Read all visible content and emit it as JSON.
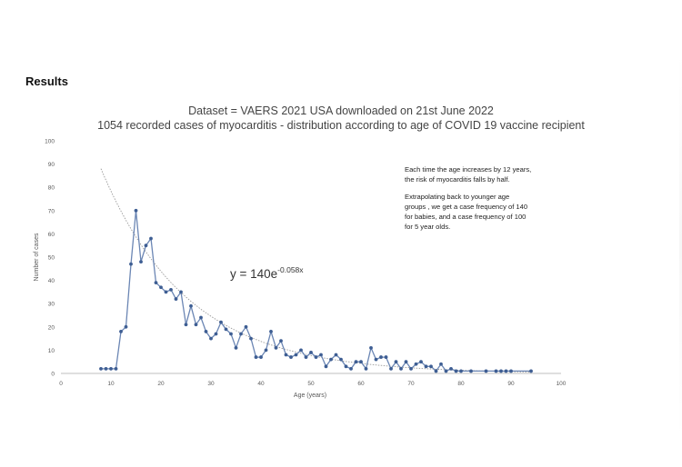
{
  "heading": "Results",
  "chart_data": {
    "type": "line",
    "title": "Dataset = VAERS 2021 USA downloaded on 21st June 2022",
    "subtitle": "1054 recorded cases of myocarditis - distribution according to age of COVID 19 vaccine recipient",
    "xlabel": "Age (years)",
    "ylabel": "Number of cases",
    "xlim": [
      0,
      100
    ],
    "ylim": [
      0,
      100
    ],
    "x_ticks": [
      0,
      10,
      20,
      30,
      40,
      50,
      60,
      70,
      80,
      90,
      100
    ],
    "y_ticks": [
      0,
      10,
      20,
      30,
      40,
      50,
      60,
      70,
      80,
      90,
      100
    ],
    "grid": false,
    "series": [
      {
        "values": [
          [
            8,
            2
          ],
          [
            9,
            2
          ],
          [
            10,
            2
          ],
          [
            11,
            2
          ],
          [
            12,
            18
          ],
          [
            13,
            20
          ],
          [
            14,
            47
          ],
          [
            15,
            70
          ],
          [
            16,
            48
          ],
          [
            17,
            55
          ],
          [
            18,
            58
          ],
          [
            19,
            39
          ],
          [
            20,
            37
          ],
          [
            21,
            35
          ],
          [
            22,
            36
          ],
          [
            23,
            32
          ],
          [
            24,
            35
          ],
          [
            25,
            21
          ],
          [
            26,
            29
          ],
          [
            27,
            21
          ],
          [
            28,
            24
          ],
          [
            29,
            18
          ],
          [
            30,
            15
          ],
          [
            31,
            17
          ],
          [
            32,
            22
          ],
          [
            33,
            19
          ],
          [
            34,
            17
          ],
          [
            35,
            11
          ],
          [
            36,
            17
          ],
          [
            37,
            20
          ],
          [
            38,
            15
          ],
          [
            39,
            7
          ],
          [
            40,
            7
          ],
          [
            41,
            10
          ],
          [
            42,
            18
          ],
          [
            43,
            11
          ],
          [
            44,
            14
          ],
          [
            45,
            8
          ],
          [
            46,
            7
          ],
          [
            47,
            8
          ],
          [
            48,
            10
          ],
          [
            49,
            7
          ],
          [
            50,
            9
          ],
          [
            51,
            7
          ],
          [
            52,
            8
          ],
          [
            53,
            3
          ],
          [
            54,
            6
          ],
          [
            55,
            8
          ],
          [
            56,
            6
          ],
          [
            57,
            3
          ],
          [
            58,
            2
          ],
          [
            59,
            5
          ],
          [
            60,
            5
          ],
          [
            61,
            2
          ],
          [
            62,
            11
          ],
          [
            63,
            6
          ],
          [
            64,
            7
          ],
          [
            65,
            7
          ],
          [
            66,
            2
          ],
          [
            67,
            5
          ],
          [
            68,
            2
          ],
          [
            69,
            5
          ],
          [
            70,
            2
          ],
          [
            71,
            4
          ],
          [
            72,
            5
          ],
          [
            73,
            3
          ],
          [
            74,
            3
          ],
          [
            75,
            1
          ],
          [
            76,
            4
          ],
          [
            77,
            1
          ],
          [
            78,
            2
          ],
          [
            79,
            1
          ],
          [
            80,
            1
          ],
          [
            82,
            1
          ],
          [
            85,
            1
          ],
          [
            87,
            1
          ],
          [
            88,
            1
          ],
          [
            89,
            1
          ],
          [
            90,
            1
          ],
          [
            94,
            1
          ]
        ]
      }
    ],
    "trendline": {
      "equation_base": "y = 140e",
      "equation_exponent": "-0.058x",
      "a": 140,
      "b": -0.058,
      "x_range": [
        8,
        94
      ]
    },
    "annotation": [
      "Each time the age increases by 12 years, the risk of myocarditis falls by half.",
      "Extrapolating back to younger age groups , we get a case frequency of 140 for babies, and a case frequency of 100 for 5 year olds."
    ],
    "colors": {
      "line": "#6b86b4",
      "marker": "#3e5e93",
      "trend": "#999999",
      "axis": "#bfbfbf",
      "tick_text": "#595959"
    }
  }
}
